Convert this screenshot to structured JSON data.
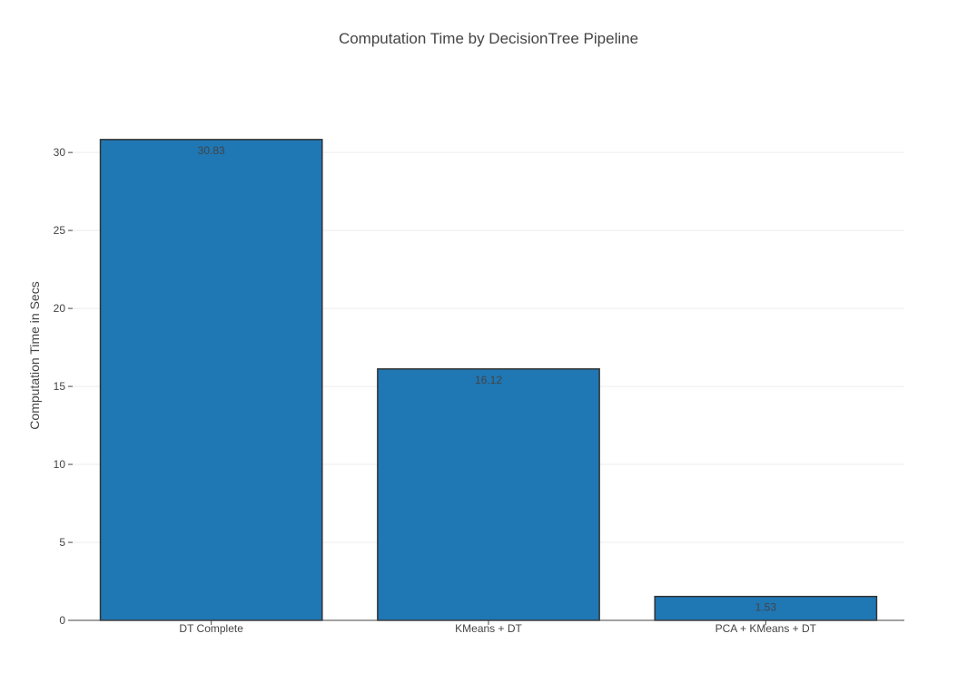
{
  "chart_data": {
    "type": "bar",
    "title": "Computation Time by DecisionTree Pipeline",
    "xlabel": "",
    "ylabel": "Computation Time in Secs",
    "categories": [
      "DT Complete",
      "KMeans + DT",
      "PCA + KMeans + DT"
    ],
    "values": [
      30.83,
      16.12,
      1.53
    ],
    "value_labels": [
      "30.83",
      "16.12",
      "1.53"
    ],
    "ylim": [
      0,
      32.45
    ],
    "yticks": [
      0,
      5,
      10,
      15,
      20,
      25,
      30
    ],
    "grid": true,
    "bar_color": "#1f77b4",
    "bar_edge_color": "#333333"
  }
}
